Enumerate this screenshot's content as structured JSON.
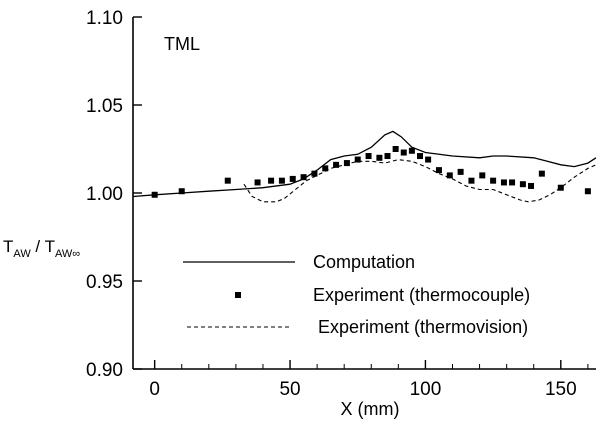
{
  "chart_data": {
    "type": "line",
    "annotation": "TML",
    "xlabel": "X (mm)",
    "ylabel": {
      "parts": [
        {
          "text": "T",
          "sub": false
        },
        {
          "text": "AW",
          "sub": true
        },
        {
          "text": " / T",
          "sub": false
        },
        {
          "text": "AW∞",
          "sub": true
        }
      ]
    },
    "xlim": [
      -8,
      163
    ],
    "ylim": [
      0.9,
      1.1
    ],
    "x_ticks": [
      0,
      50,
      100,
      150
    ],
    "x_tick_labels": [
      "0",
      "50",
      "100",
      "150"
    ],
    "y_ticks": [
      0.9,
      0.95,
      1.0,
      1.05,
      1.1
    ],
    "y_tick_labels": [
      "0.90",
      "0.95",
      "1.00",
      "1.05",
      "1.10"
    ],
    "legend_position": "lower-right",
    "series": [
      {
        "name": "Computation",
        "style": "solid",
        "points": [
          [
            -8,
            0.998
          ],
          [
            0,
            0.999
          ],
          [
            10,
            1.0
          ],
          [
            20,
            1.001
          ],
          [
            30,
            1.002
          ],
          [
            40,
            1.003
          ],
          [
            50,
            1.005
          ],
          [
            55,
            1.008
          ],
          [
            60,
            1.013
          ],
          [
            65,
            1.019
          ],
          [
            70,
            1.021
          ],
          [
            75,
            1.022
          ],
          [
            80,
            1.026
          ],
          [
            85,
            1.033
          ],
          [
            88,
            1.035
          ],
          [
            91,
            1.032
          ],
          [
            95,
            1.026
          ],
          [
            100,
            1.023
          ],
          [
            110,
            1.021
          ],
          [
            120,
            1.02
          ],
          [
            125,
            1.021
          ],
          [
            130,
            1.021
          ],
          [
            140,
            1.02
          ],
          [
            145,
            1.018
          ],
          [
            150,
            1.016
          ],
          [
            155,
            1.015
          ],
          [
            160,
            1.017
          ],
          [
            163,
            1.02
          ]
        ]
      },
      {
        "name": "Experiment (thermocouple)",
        "style": "markers",
        "points": [
          [
            0,
            0.999
          ],
          [
            10,
            1.001
          ],
          [
            27,
            1.007
          ],
          [
            38,
            1.006
          ],
          [
            43,
            1.007
          ],
          [
            47,
            1.007
          ],
          [
            51,
            1.008
          ],
          [
            55,
            1.009
          ],
          [
            59,
            1.011
          ],
          [
            63,
            1.014
          ],
          [
            67,
            1.016
          ],
          [
            71,
            1.017
          ],
          [
            75,
            1.019
          ],
          [
            79,
            1.021
          ],
          [
            83,
            1.02
          ],
          [
            86,
            1.021
          ],
          [
            89,
            1.025
          ],
          [
            92,
            1.023
          ],
          [
            95,
            1.024
          ],
          [
            98,
            1.021
          ],
          [
            101,
            1.019
          ],
          [
            105,
            1.013
          ],
          [
            109,
            1.01
          ],
          [
            113,
            1.012
          ],
          [
            117,
            1.007
          ],
          [
            121,
            1.01
          ],
          [
            125,
            1.007
          ],
          [
            129,
            1.006
          ],
          [
            132,
            1.006
          ],
          [
            136,
            1.005
          ],
          [
            139,
            1.004
          ],
          [
            143,
            1.011
          ],
          [
            150,
            1.003
          ],
          [
            160,
            1.001
          ]
        ]
      },
      {
        "name": "Experiment (thermovision)",
        "style": "dashed",
        "points": [
          [
            33,
            1.005
          ],
          [
            36,
            0.998
          ],
          [
            40,
            0.995
          ],
          [
            45,
            0.995
          ],
          [
            48,
            0.997
          ],
          [
            52,
            1.002
          ],
          [
            56,
            1.007
          ],
          [
            60,
            1.01
          ],
          [
            65,
            1.014
          ],
          [
            70,
            1.016
          ],
          [
            75,
            1.018
          ],
          [
            80,
            1.018
          ],
          [
            85,
            1.017
          ],
          [
            90,
            1.019
          ],
          [
            95,
            1.018
          ],
          [
            100,
            1.015
          ],
          [
            105,
            1.011
          ],
          [
            110,
            1.008
          ],
          [
            115,
            1.004
          ],
          [
            120,
            1.002
          ],
          [
            125,
            1.002
          ],
          [
            130,
            0.999
          ],
          [
            135,
            0.996
          ],
          [
            138,
            0.995
          ],
          [
            142,
            0.996
          ],
          [
            146,
            0.999
          ],
          [
            150,
            1.003
          ],
          [
            155,
            1.009
          ],
          [
            160,
            1.014
          ],
          [
            163,
            1.016
          ]
        ]
      }
    ]
  }
}
